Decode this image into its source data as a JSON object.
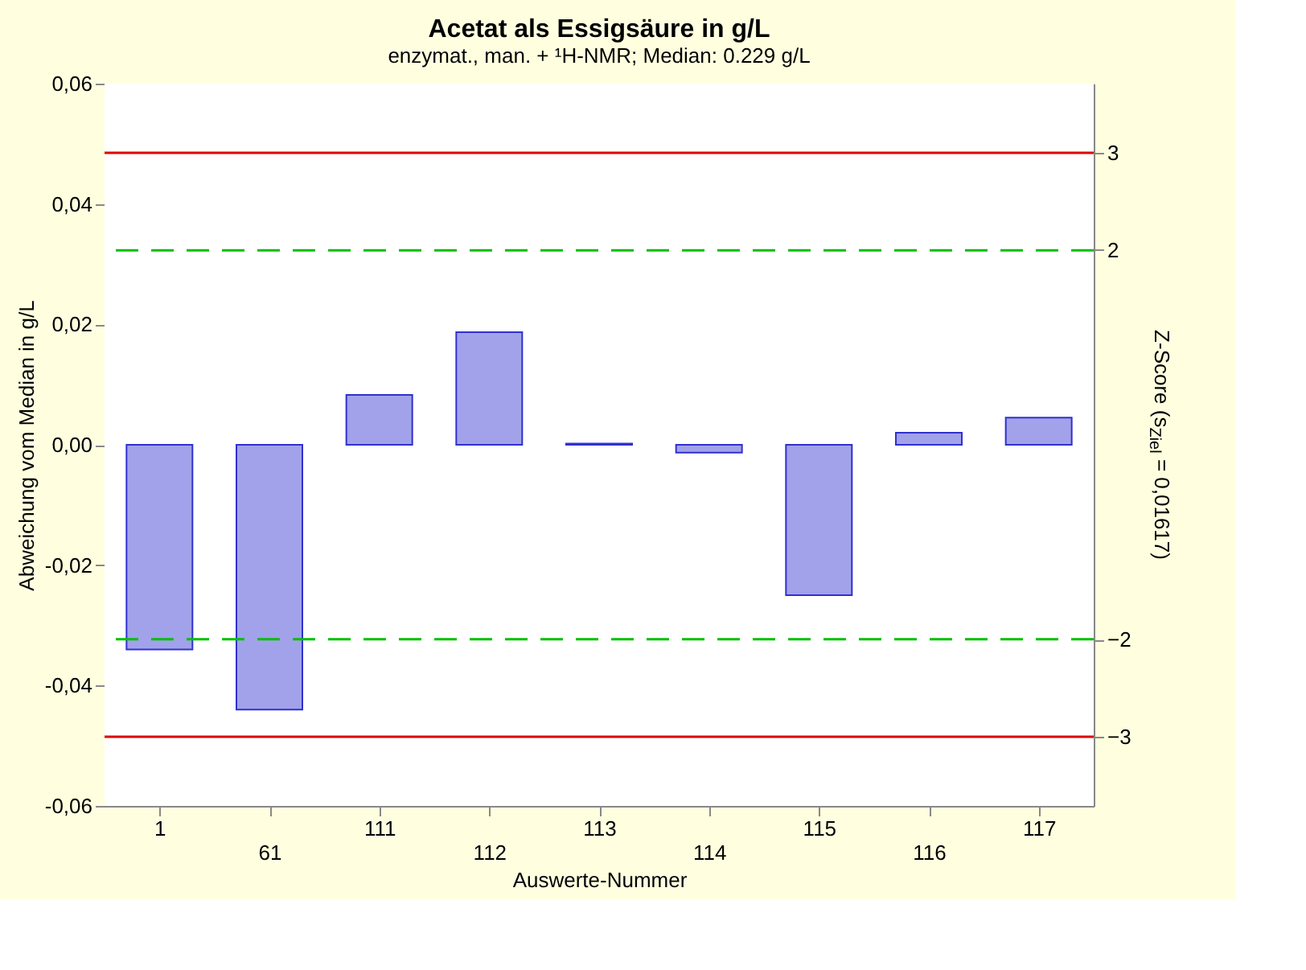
{
  "chart_data": {
    "type": "bar",
    "title": "Acetat als Essigsäure in g/L",
    "subtitle": "enzymat., man. + ¹H-NMR; Median: 0.229 g/L",
    "xlabel": "Auswerte-Nummer",
    "ylabel": "Abweichung vom Median in g/L",
    "y2label": "Z-Score (s$_{Ziel}$ = 0,01617)",
    "categories": [
      "1",
      "61",
      "111",
      "112",
      "113",
      "114",
      "115",
      "116",
      "117"
    ],
    "values": [
      -0.034,
      -0.044,
      0.0083,
      0.0187,
      0.0002,
      -0.0013,
      -0.025,
      0.002,
      0.0045
    ],
    "color": "#3030d0",
    "ylim": [
      -0.06,
      0.06
    ],
    "yticks": [
      {
        "value": -0.06,
        "label": "-0,06"
      },
      {
        "value": -0.04,
        "label": "-0,04"
      },
      {
        "value": -0.02,
        "label": "-0,02"
      },
      {
        "value": 0,
        "label": "0,00"
      },
      {
        "value": 0.02,
        "label": "0,02"
      },
      {
        "value": 0.04,
        "label": "0,04"
      },
      {
        "value": 0.06,
        "label": "0,06"
      }
    ],
    "y2lim": [
      -3.71,
      3.71
    ],
    "y2ticks": [
      -3,
      -2,
      2,
      3
    ],
    "ref_lines": [
      {
        "axis": "y",
        "value": 0.0485,
        "color": "#e00000",
        "line_style": "solid"
      },
      {
        "axis": "y",
        "value": -0.0485,
        "color": "#e00000",
        "line_style": "solid"
      },
      {
        "axis": "y",
        "value": 0.0323,
        "color": "#00c000",
        "line_style": "dashed"
      },
      {
        "axis": "y",
        "value": -0.0323,
        "color": "#00c000",
        "line_style": "dashed"
      }
    ]
  }
}
